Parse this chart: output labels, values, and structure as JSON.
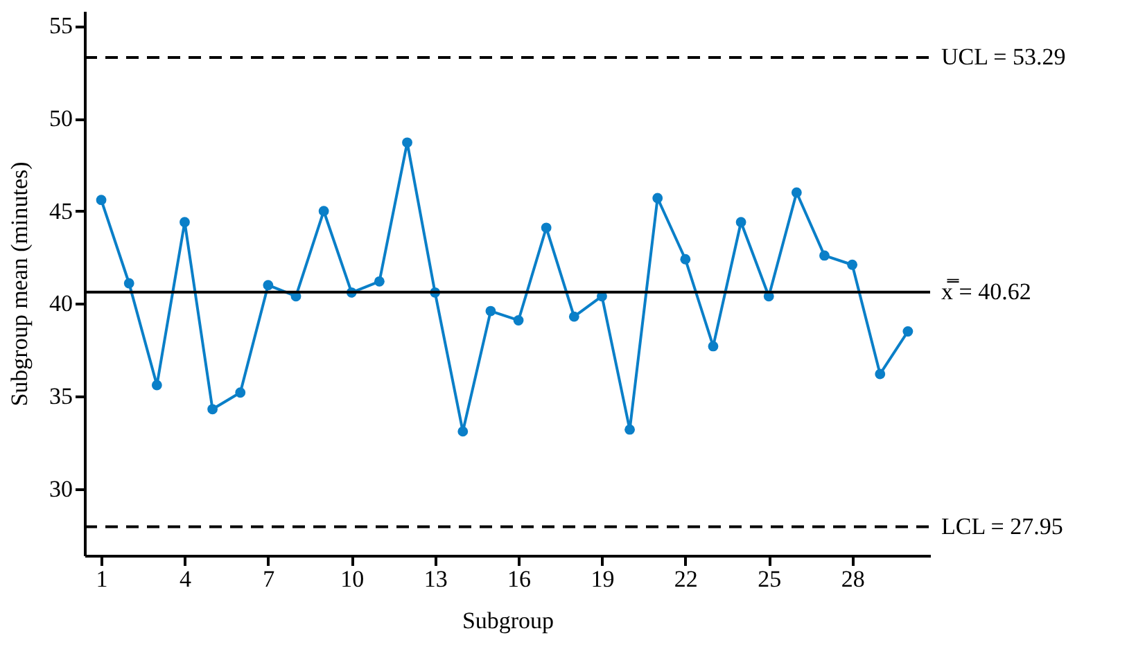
{
  "chart_data": {
    "type": "line",
    "xlabel": "Subgroup",
    "ylabel": "Subgroup mean (minutes)",
    "x": [
      1,
      2,
      3,
      4,
      5,
      6,
      7,
      8,
      9,
      10,
      11,
      12,
      13,
      14,
      15,
      16,
      17,
      18,
      19,
      20,
      21,
      22,
      23,
      24,
      25,
      26,
      27,
      28,
      29,
      30
    ],
    "series": [
      {
        "color": "#0a7fc8",
        "values": [
          45.6,
          41.1,
          35.6,
          44.4,
          34.3,
          35.2,
          41.0,
          40.4,
          45.0,
          40.6,
          41.2,
          48.7,
          40.6,
          33.1,
          39.6,
          39.1,
          44.1,
          39.3,
          40.4,
          33.2,
          45.7,
          42.4,
          37.7,
          44.4,
          40.4,
          46.0,
          42.6,
          42.1,
          36.2,
          38.5
        ]
      }
    ],
    "marker": "circle",
    "xlim": [
      0.4,
      30.8
    ],
    "xticks": [
      1,
      4,
      7,
      10,
      13,
      16,
      19,
      22,
      25,
      28
    ],
    "ylim": [
      26.4,
      55.8
    ],
    "yticks": [
      30,
      35,
      40,
      45,
      50,
      55
    ],
    "ref_lines": [
      {
        "axis": "y",
        "value": 53.29,
        "label": "UCL = 53.29",
        "line_style": "dashed"
      },
      {
        "axis": "y",
        "value": 40.62,
        "label": "x̿ = 40.62",
        "line_style": "solid"
      },
      {
        "axis": "y",
        "value": 27.95,
        "label": "LCL = 27.95",
        "line_style": "dashed"
      }
    ],
    "grid": false
  }
}
